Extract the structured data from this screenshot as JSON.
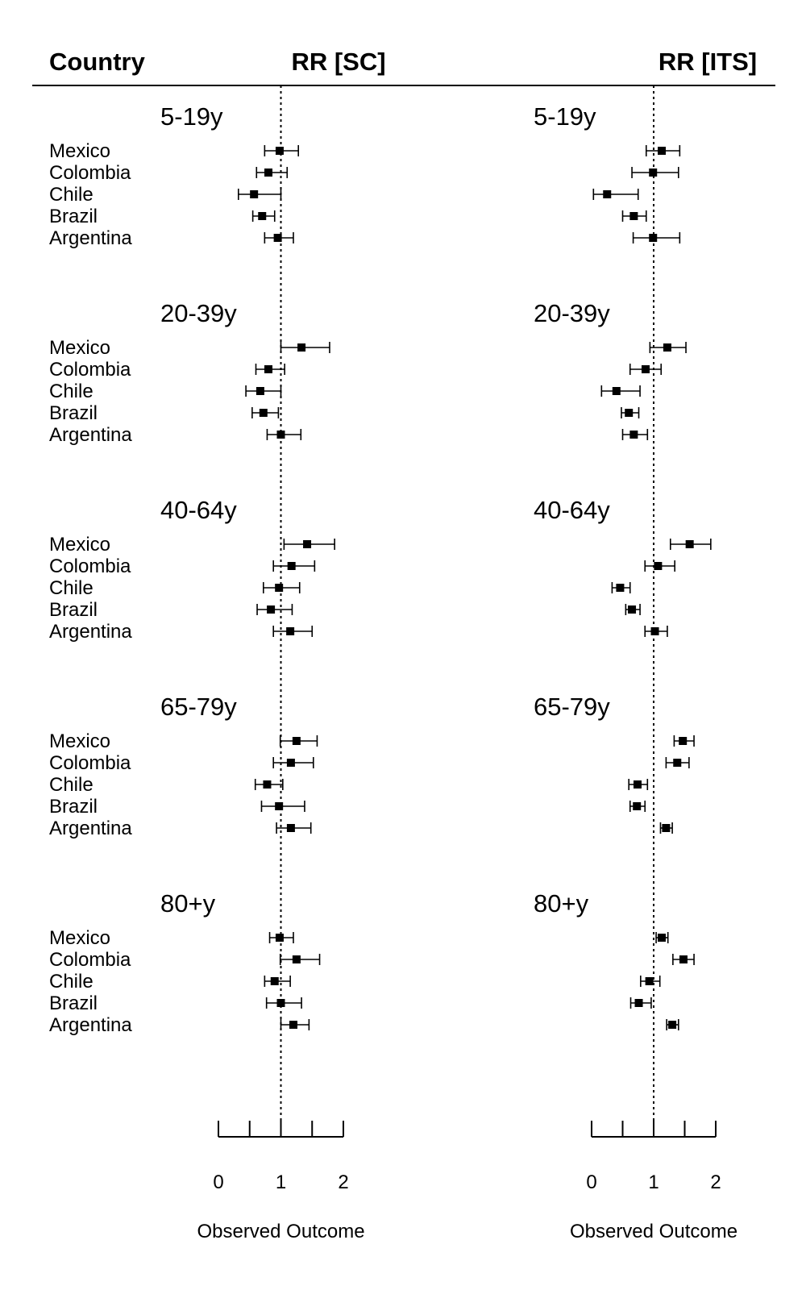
{
  "headers": {
    "country": "Country",
    "left": "RR [SC]",
    "right": "RR [ITS]"
  },
  "axis": {
    "ticks": [
      "0",
      "1",
      "2"
    ],
    "xlabel": "Observed Outcome"
  },
  "chart_data": {
    "type": "forest",
    "title": "",
    "reference_line": 1,
    "x_range": [
      0,
      2
    ],
    "minor_ticks": [
      0.5,
      1.5
    ],
    "countries": [
      "Mexico",
      "Colombia",
      "Chile",
      "Brazil",
      "Argentina"
    ],
    "groups": [
      {
        "label": "5-19y",
        "sc": [
          [
            0.98,
            0.74,
            1.28
          ],
          [
            0.8,
            0.61,
            1.1
          ],
          [
            0.57,
            0.32,
            1.0
          ],
          [
            0.7,
            0.55,
            0.9
          ],
          [
            0.95,
            0.74,
            1.2
          ]
        ],
        "its": [
          [
            1.13,
            0.88,
            1.42
          ],
          [
            0.99,
            0.65,
            1.4
          ],
          [
            0.25,
            0.03,
            0.75
          ],
          [
            0.68,
            0.5,
            0.88
          ],
          [
            0.99,
            0.67,
            1.42
          ]
        ]
      },
      {
        "label": "20-39y",
        "sc": [
          [
            1.33,
            1.0,
            1.78
          ],
          [
            0.8,
            0.6,
            1.06
          ],
          [
            0.67,
            0.44,
            1.0
          ],
          [
            0.72,
            0.54,
            0.96
          ],
          [
            1.0,
            0.78,
            1.32
          ]
        ],
        "its": [
          [
            1.22,
            0.94,
            1.52
          ],
          [
            0.87,
            0.62,
            1.12
          ],
          [
            0.4,
            0.16,
            0.78
          ],
          [
            0.6,
            0.48,
            0.76
          ],
          [
            0.68,
            0.5,
            0.9
          ]
        ]
      },
      {
        "label": "40-64y",
        "sc": [
          [
            1.42,
            1.05,
            1.86
          ],
          [
            1.17,
            0.88,
            1.54
          ],
          [
            0.97,
            0.72,
            1.3
          ],
          [
            0.84,
            0.62,
            1.18
          ],
          [
            1.15,
            0.88,
            1.5
          ]
        ],
        "its": [
          [
            1.58,
            1.27,
            1.92
          ],
          [
            1.07,
            0.86,
            1.34
          ],
          [
            0.46,
            0.33,
            0.62
          ],
          [
            0.65,
            0.55,
            0.78
          ],
          [
            1.02,
            0.86,
            1.22
          ]
        ]
      },
      {
        "label": "65-79y",
        "sc": [
          [
            1.25,
            0.99,
            1.58
          ],
          [
            1.16,
            0.88,
            1.52
          ],
          [
            0.78,
            0.59,
            1.03
          ],
          [
            0.97,
            0.69,
            1.38
          ],
          [
            1.16,
            0.93,
            1.48
          ]
        ],
        "its": [
          [
            1.47,
            1.33,
            1.65
          ],
          [
            1.38,
            1.2,
            1.57
          ],
          [
            0.74,
            0.6,
            0.9
          ],
          [
            0.73,
            0.62,
            0.86
          ],
          [
            1.2,
            1.11,
            1.3
          ]
        ]
      },
      {
        "label": "80+y",
        "sc": [
          [
            0.98,
            0.82,
            1.2
          ],
          [
            1.25,
            0.99,
            1.62
          ],
          [
            0.9,
            0.74,
            1.15
          ],
          [
            1.0,
            0.77,
            1.33
          ],
          [
            1.2,
            1.0,
            1.45
          ]
        ],
        "its": [
          [
            1.13,
            1.04,
            1.23
          ],
          [
            1.48,
            1.31,
            1.65
          ],
          [
            0.93,
            0.79,
            1.1
          ],
          [
            0.76,
            0.63,
            0.96
          ],
          [
            1.3,
            1.21,
            1.4
          ]
        ]
      }
    ]
  }
}
